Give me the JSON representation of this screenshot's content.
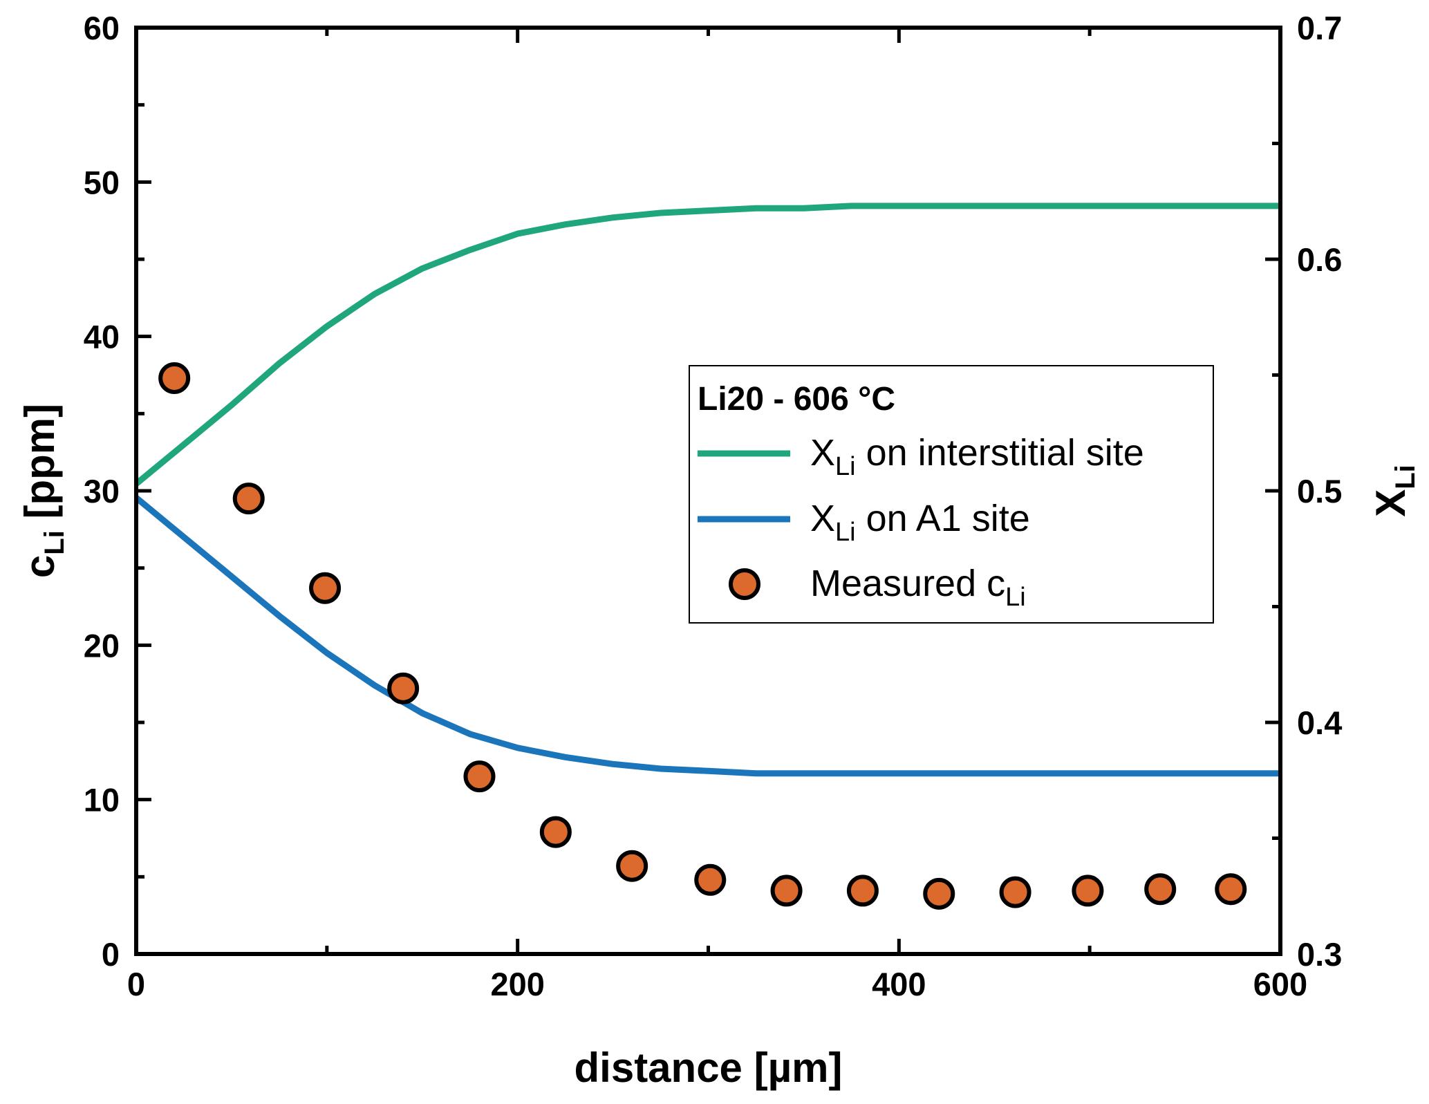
{
  "chart_data": {
    "type": "line",
    "title": "",
    "xlabel": "distance [µm]",
    "ylabel": {
      "main": "c",
      "sub": "Li",
      "suffix": " [ppm]"
    },
    "y2label": {
      "main": "X",
      "sub": "Li"
    },
    "xlim": [
      0,
      600
    ],
    "ylim": [
      0,
      60
    ],
    "y2lim": [
      0.3,
      0.7
    ],
    "x_ticks": [
      "0",
      "200",
      "400",
      "600"
    ],
    "x_tick_values": [
      0,
      200,
      400,
      600
    ],
    "y_ticks": [
      "0",
      "10",
      "20",
      "30",
      "40",
      "50",
      "60"
    ],
    "y_tick_values": [
      0,
      10,
      20,
      30,
      40,
      50,
      60
    ],
    "y2_ticks": [
      "0.3",
      "0.4",
      "0.5",
      "0.6",
      "0.7"
    ],
    "y2_tick_values": [
      0.3,
      0.4,
      0.5,
      0.6,
      0.7
    ],
    "grid": false,
    "legend": {
      "position": "center-right",
      "title": "Li20 - 606 °C"
    },
    "series": [
      {
        "label_main": "X",
        "label_sub": "Li",
        "label_suffix": " on interstitial site",
        "kind": "line",
        "axis": "right",
        "color": "#1fa67d",
        "x": [
          0,
          25,
          50,
          75,
          100,
          125,
          150,
          175,
          200,
          225,
          250,
          275,
          300,
          325,
          350,
          375,
          400,
          450,
          500,
          550,
          600
        ],
        "y": [
          0.503,
          0.52,
          0.537,
          0.555,
          0.571,
          0.585,
          0.596,
          0.604,
          0.611,
          0.615,
          0.618,
          0.62,
          0.621,
          0.622,
          0.622,
          0.623,
          0.623,
          0.623,
          0.623,
          0.623,
          0.623
        ]
      },
      {
        "label_main": "X",
        "label_sub": "Li",
        "label_suffix": " on A1 site",
        "kind": "line",
        "axis": "right",
        "color": "#1a75bb",
        "x": [
          0,
          25,
          50,
          75,
          100,
          125,
          150,
          175,
          200,
          225,
          250,
          275,
          300,
          325,
          350,
          375,
          400,
          450,
          500,
          550,
          600
        ],
        "y": [
          0.497,
          0.48,
          0.463,
          0.446,
          0.43,
          0.416,
          0.404,
          0.395,
          0.389,
          0.385,
          0.382,
          0.38,
          0.379,
          0.378,
          0.378,
          0.378,
          0.378,
          0.378,
          0.378,
          0.378,
          0.378
        ]
      },
      {
        "label_main": "Measured c",
        "label_sub": "Li",
        "label_suffix": "",
        "kind": "scatter",
        "axis": "left",
        "color": "#dc6a2c",
        "x": [
          20,
          59,
          99,
          140,
          180,
          220,
          260,
          301,
          341,
          381,
          421,
          461,
          499,
          537,
          574
        ],
        "y": [
          37.3,
          29.5,
          23.7,
          17.2,
          11.5,
          7.9,
          5.7,
          4.8,
          4.1,
          4.1,
          3.9,
          4.0,
          4.1,
          4.2,
          4.2
        ]
      }
    ]
  }
}
